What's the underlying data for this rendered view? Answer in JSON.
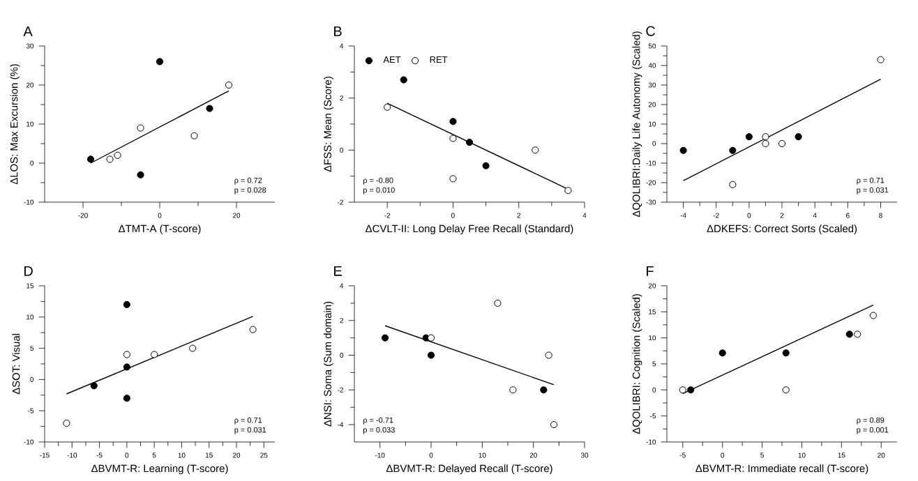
{
  "chart_data": [
    {
      "type": "scatter",
      "title": "A",
      "xlabel": "ΔTMT-A (T-score)",
      "ylabel": "ΔLOS: Max Excursion (%)",
      "xlim": [
        -30,
        30
      ],
      "ylim": [
        -10,
        30
      ],
      "xticks": [
        -20,
        0,
        20
      ],
      "yticks": [
        -10,
        0,
        10,
        20,
        30
      ],
      "legend": false,
      "annotations": [
        "ρ = 0.72",
        "p = 0.028"
      ],
      "series": [
        {
          "marker": "circle",
          "color": "#000000",
          "x": [
            -18,
            0,
            13,
            -5
          ],
          "values": [
            1,
            26,
            14,
            -3
          ]
        },
        {
          "marker": "circle",
          "color": "#ffffff",
          "x": [
            -13,
            -11,
            -5,
            9,
            18
          ],
          "values": [
            1,
            2,
            9,
            7,
            20
          ]
        },
        {
          "type": "line",
          "marker": "none",
          "color": "#000000",
          "x": [
            -18,
            18
          ],
          "values": [
            0,
            18.5
          ]
        }
      ]
    },
    {
      "type": "scatter",
      "title": "B",
      "xlabel": "ΔCVLT-II: Long Delay Free Recall (Standard)",
      "ylabel": "ΔFSS: Mean (Score)",
      "xlim": [
        -3,
        4
      ],
      "ylim": [
        -2,
        4
      ],
      "xticks": [
        -2,
        0,
        2,
        4
      ],
      "yticks": [
        -2,
        0,
        2,
        4
      ],
      "legend": "top left",
      "annotations": [
        "ρ = -0.80",
        "p = 0.010"
      ],
      "series": [
        {
          "name": "AET",
          "marker": "circle",
          "color": "#000000",
          "x": [
            -1.5,
            0,
            0.5,
            1
          ],
          "values": [
            2.7,
            1.1,
            0.3,
            -0.6
          ]
        },
        {
          "name": "RET",
          "marker": "circle",
          "color": "#ffffff",
          "x": [
            -2,
            0,
            0,
            2.5,
            3.5
          ],
          "values": [
            1.65,
            0.45,
            -1.1,
            0,
            -1.55
          ]
        },
        {
          "type": "line",
          "marker": "none",
          "color": "#000000",
          "x": [
            -2,
            3.5
          ],
          "values": [
            1.8,
            -1.5
          ]
        }
      ]
    },
    {
      "type": "scatter",
      "title": "C",
      "xlabel": "ΔDKEFS: Correct Sorts (Scaled)",
      "ylabel": "ΔQOLIBRI:Daily Life Autonomy (Scaled)",
      "xlim": [
        -5,
        9
      ],
      "ylim": [
        -30,
        50
      ],
      "xticks": [
        -4,
        -2,
        0,
        2,
        4,
        6,
        8
      ],
      "yticks": [
        -30,
        -20,
        -10,
        0,
        10,
        20,
        30,
        40,
        50
      ],
      "legend": false,
      "annotations": [
        "ρ = 0.71",
        "p = 0.031"
      ],
      "series": [
        {
          "marker": "circle",
          "color": "#000000",
          "x": [
            -4,
            -1,
            0,
            3
          ],
          "values": [
            -3.5,
            -3.5,
            3.5,
            3.5
          ]
        },
        {
          "marker": "circle",
          "color": "#ffffff",
          "x": [
            -1,
            1,
            1,
            2,
            8
          ],
          "values": [
            -21,
            3.5,
            0,
            0,
            43
          ]
        },
        {
          "type": "line",
          "marker": "none",
          "color": "#000000",
          "x": [
            -4,
            8
          ],
          "values": [
            -19,
            33
          ]
        }
      ]
    },
    {
      "type": "scatter",
      "title": "D",
      "xlabel": "ΔBVMT-R: Learning (T-score)",
      "ylabel": "ΔSOT: Visual",
      "xlim": [
        -15,
        27
      ],
      "ylim": [
        -10,
        15
      ],
      "xticks": [
        -15,
        -10,
        -5,
        0,
        5,
        10,
        15,
        20,
        25
      ],
      "yticks": [
        -10,
        -5,
        0,
        5,
        10,
        15
      ],
      "legend": false,
      "annotations": [
        "ρ = 0.71",
        "p = 0.031"
      ],
      "series": [
        {
          "marker": "circle",
          "color": "#000000",
          "x": [
            0,
            0,
            -6,
            0
          ],
          "values": [
            12,
            2,
            -1,
            -3
          ]
        },
        {
          "marker": "circle",
          "color": "#ffffff",
          "x": [
            -11,
            0,
            5,
            12,
            23
          ],
          "values": [
            -7,
            4,
            4,
            5,
            8
          ]
        },
        {
          "type": "line",
          "marker": "none",
          "color": "#000000",
          "x": [
            -11,
            23
          ],
          "values": [
            -2.3,
            10.1
          ]
        }
      ]
    },
    {
      "type": "scatter",
      "title": "E",
      "xlabel": "ΔBVMT-R: Delayed Recall (T-score)",
      "ylabel": "ΔNSI: Soma (Sum domain)",
      "xlim": [
        -15,
        30
      ],
      "ylim": [
        -5,
        4
      ],
      "xticks": [
        -10,
        0,
        10,
        20,
        30
      ],
      "yticks": [
        -4,
        -2,
        0,
        2,
        4
      ],
      "legend": false,
      "annotations": [
        "ρ = -0.71",
        "p = 0.033"
      ],
      "series": [
        {
          "marker": "circle",
          "color": "#000000",
          "x": [
            -9,
            -1,
            0,
            22
          ],
          "values": [
            1,
            1,
            0,
            -2
          ]
        },
        {
          "marker": "circle",
          "color": "#ffffff",
          "x": [
            0,
            13,
            16,
            23,
            24
          ],
          "values": [
            1,
            3,
            -2,
            0,
            -4
          ]
        },
        {
          "type": "line",
          "marker": "none",
          "color": "#000000",
          "x": [
            -9,
            24
          ],
          "values": [
            1.7,
            -1.7
          ]
        }
      ]
    },
    {
      "type": "scatter",
      "title": "F",
      "xlabel": "ΔBVMT-R: Immediate recall (T-score)",
      "ylabel": "ΔQOLIBRI: Cognition (Scaled)",
      "xlim": [
        -7,
        22
      ],
      "ylim": [
        -10,
        20
      ],
      "xticks": [
        -5,
        0,
        5,
        10,
        15,
        20
      ],
      "yticks": [
        -10,
        -5,
        0,
        5,
        10,
        15,
        20
      ],
      "legend": false,
      "annotations": [
        "ρ = 0.89",
        "p = 0.001"
      ],
      "series": [
        {
          "marker": "circle",
          "color": "#000000",
          "x": [
            -4,
            0,
            8,
            16
          ],
          "values": [
            0,
            7.1,
            7.1,
            10.7
          ]
        },
        {
          "marker": "circle",
          "color": "#ffffff",
          "x": [
            -5,
            8,
            17,
            19
          ],
          "values": [
            0,
            0,
            10.7,
            14.3
          ]
        },
        {
          "type": "line",
          "marker": "none",
          "color": "#000000",
          "x": [
            -5,
            19
          ],
          "values": [
            -0.7,
            16.3
          ]
        }
      ]
    }
  ]
}
